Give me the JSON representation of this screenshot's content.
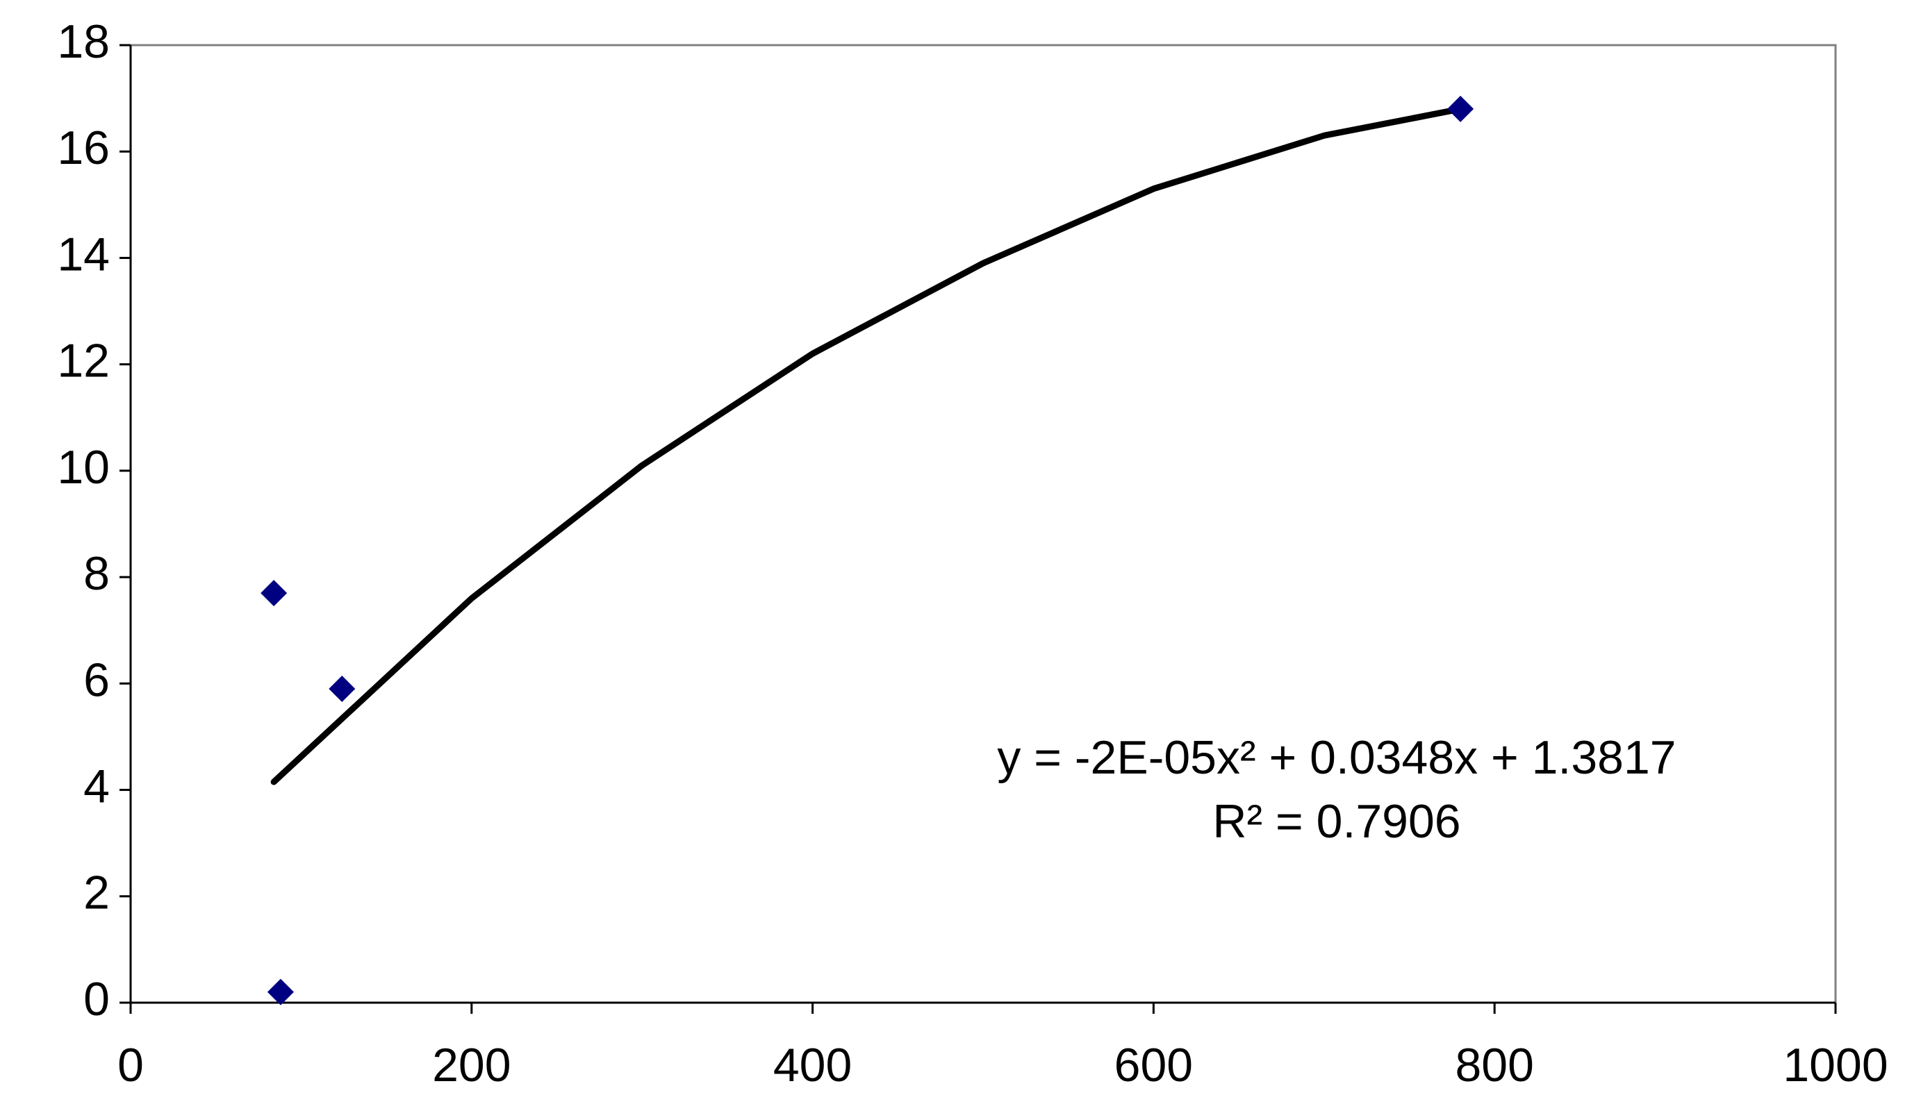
{
  "chart_data": {
    "type": "scatter",
    "series": [
      {
        "color": "#000080",
        "x": [
          84,
          88,
          124,
          780
        ],
        "values": [
          7.7,
          0.2,
          5.9,
          16.8
        ]
      }
    ],
    "trendline": {
      "color": "#000000",
      "x": [
        84,
        200,
        300,
        400,
        500,
        600,
        700,
        780
      ],
      "values": [
        4.15,
        7.6,
        10.1,
        12.2,
        13.9,
        15.3,
        16.3,
        16.8
      ]
    },
    "annotations": [
      "y = -2E-05x² + 0.0348x + 1.3817",
      "R² = 0.7906"
    ],
    "xlim": [
      0,
      1000
    ],
    "xticks": [
      0,
      200,
      400,
      600,
      800,
      1000
    ],
    "ylim": [
      0,
      18
    ],
    "yticks": [
      0,
      2,
      4,
      6,
      8,
      10,
      12,
      14,
      16,
      18
    ],
    "grid": false
  }
}
